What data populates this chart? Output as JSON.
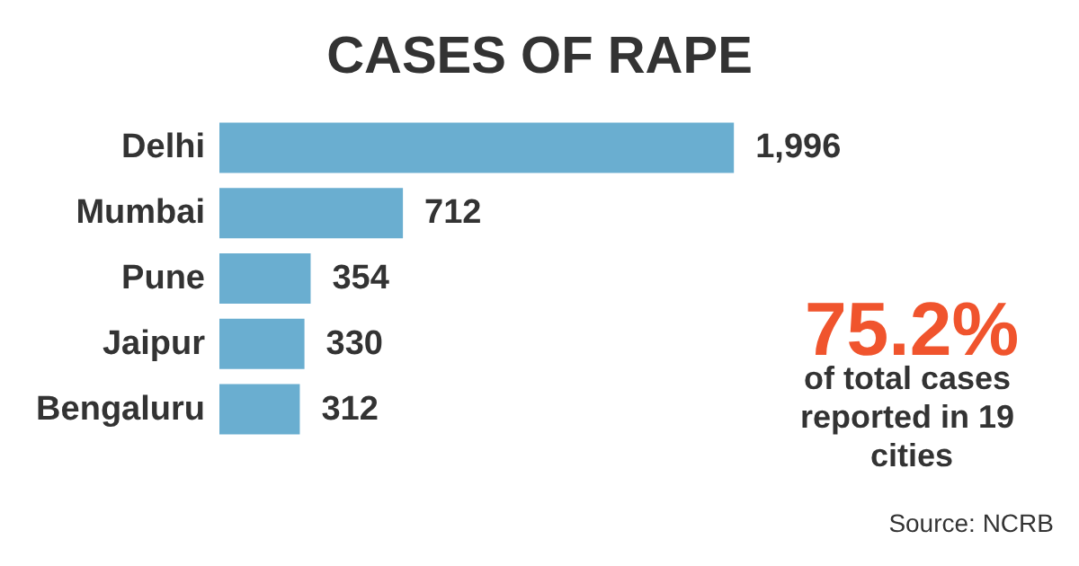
{
  "chart_data": {
    "type": "bar",
    "orientation": "horizontal",
    "title": "CASES OF RAPE",
    "categories": [
      "Delhi",
      "Mumbai",
      "Pune",
      "Jaipur",
      "Bengaluru"
    ],
    "values": [
      1996,
      712,
      354,
      330,
      312
    ],
    "color": "#6aaed0",
    "value_labels": [
      "1,996",
      "712",
      "354",
      "330",
      "312"
    ],
    "annotations": [
      "75.2%",
      "of total cases reported in 19 cities",
      "Source: NCRB"
    ]
  }
}
